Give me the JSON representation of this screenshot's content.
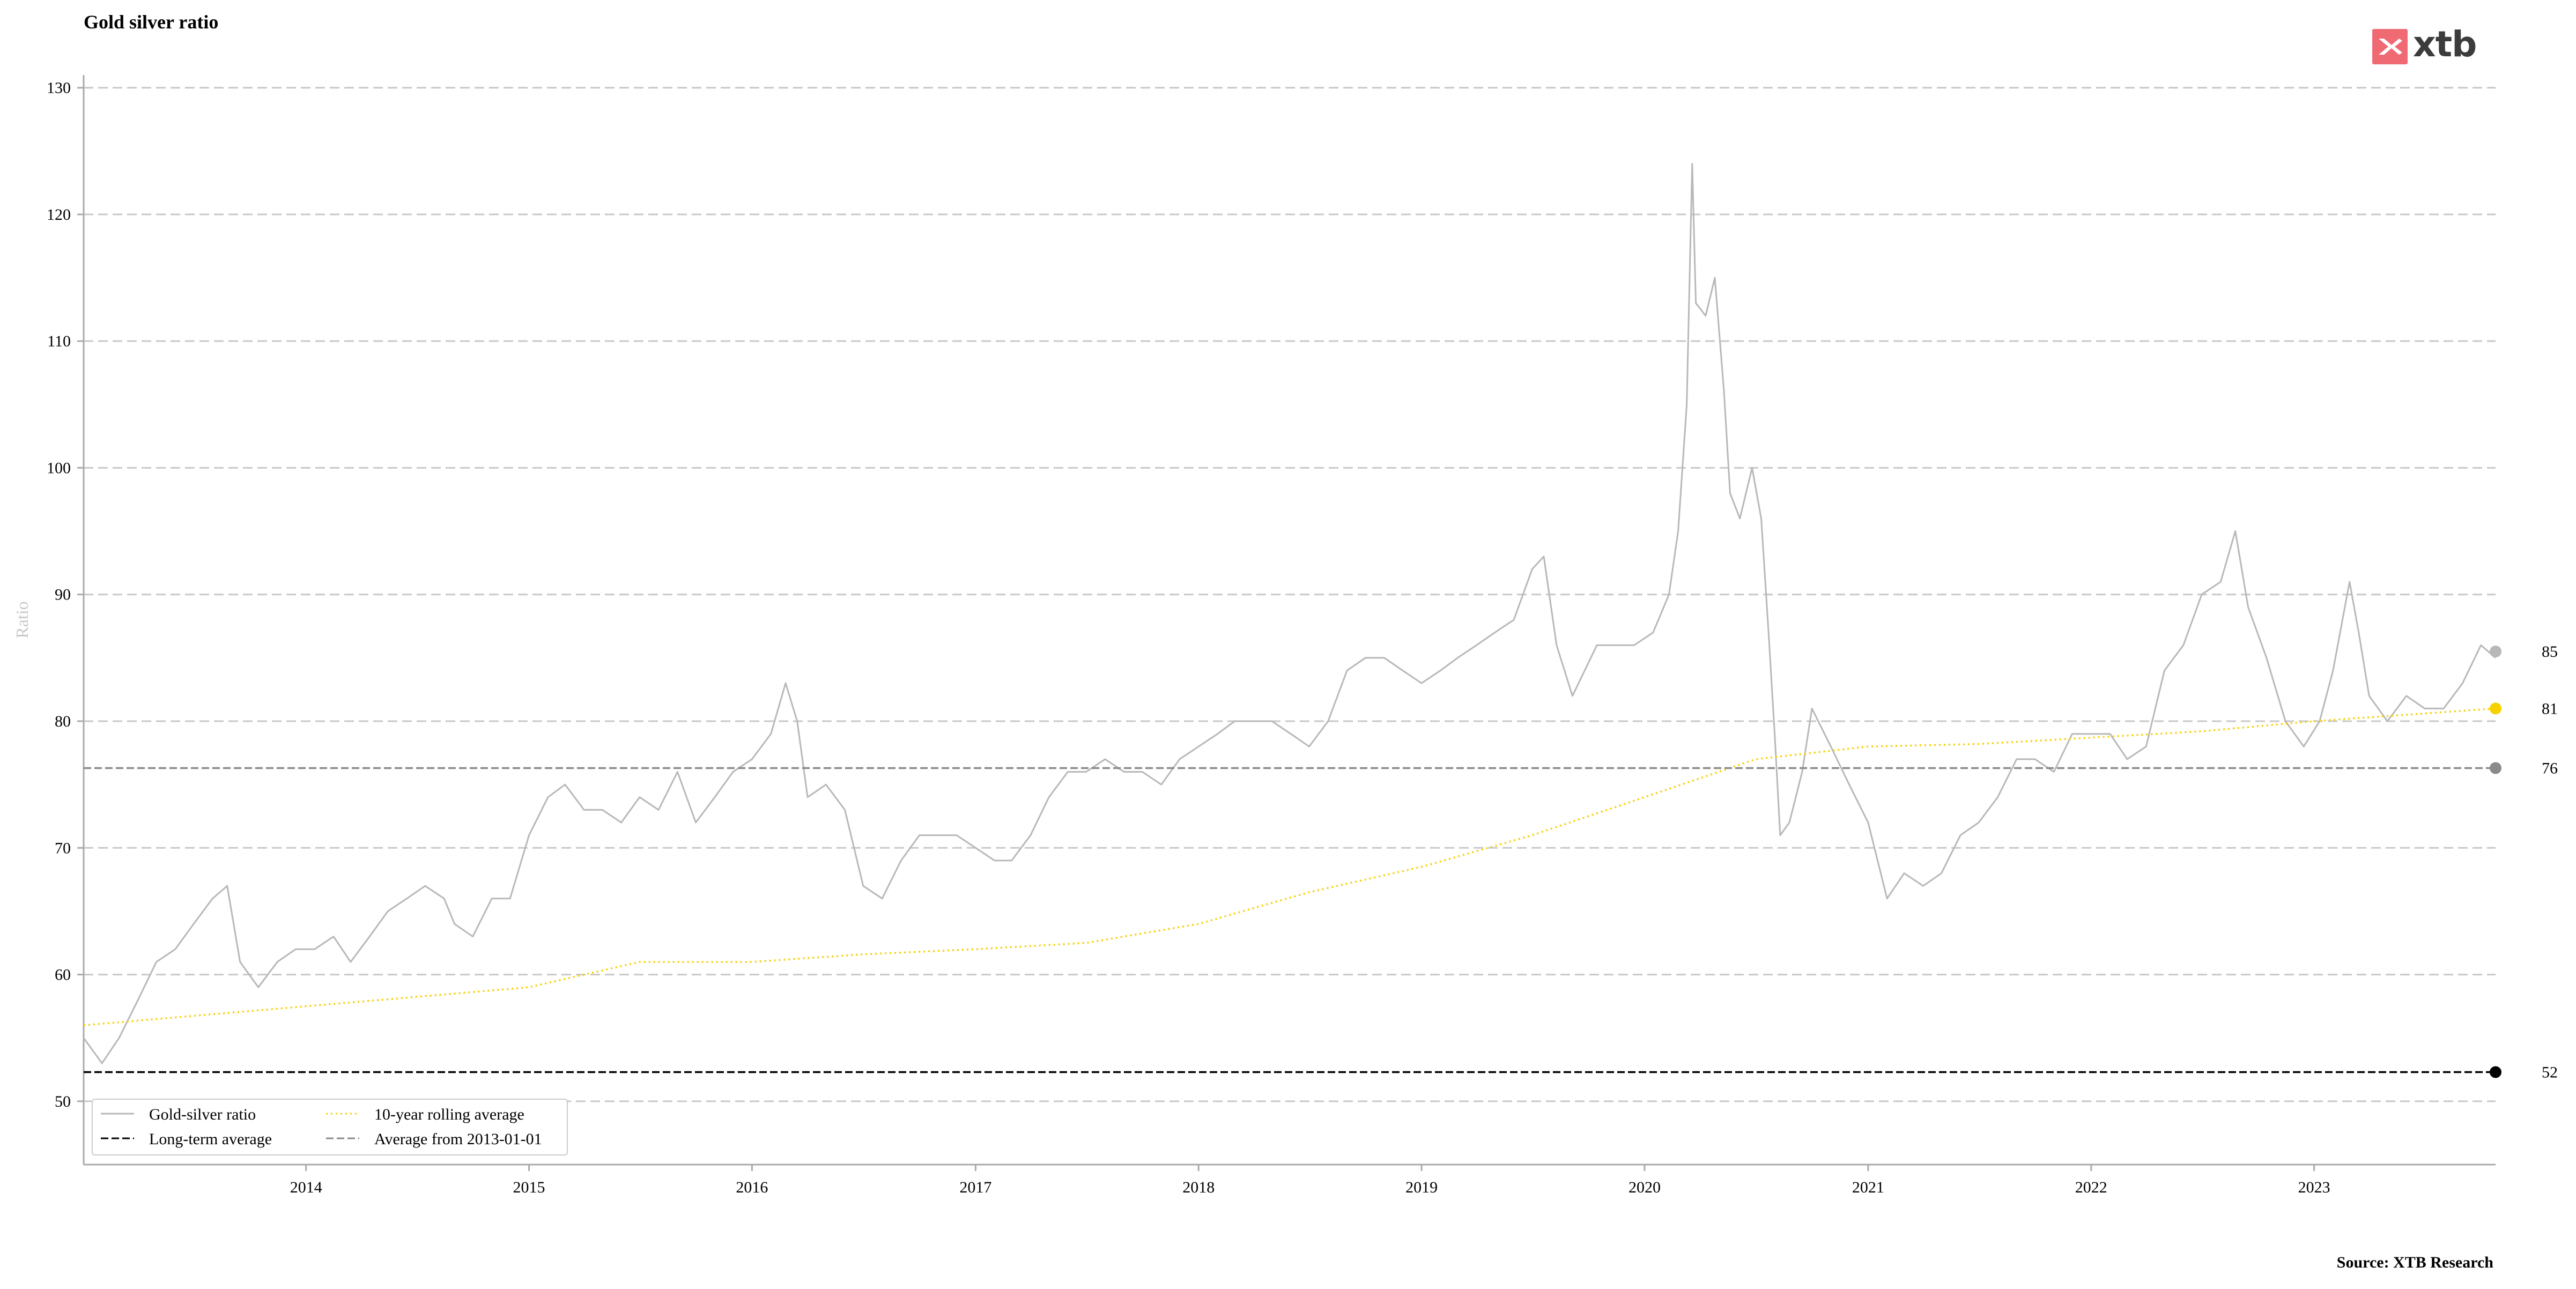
{
  "title": "Gold silver ratio",
  "source": "Source: XTB Research",
  "logo": {
    "text": "xtb",
    "icon": "xtb-logo-icon",
    "color": "#f06a73"
  },
  "chart_data": {
    "type": "line",
    "title": "Gold silver ratio",
    "ylabel": "Ratio",
    "xlabel": "",
    "xlim": [
      "2013-01-02",
      "2023-10-25"
    ],
    "ylim": [
      45,
      131
    ],
    "grid": "horizontal dashed",
    "legend_position": "bottom-left",
    "x_ticks": [
      "2014",
      "2015",
      "2016",
      "2017",
      "2018",
      "2019",
      "2020",
      "2021",
      "2022",
      "2023"
    ],
    "y_ticks": [
      50,
      60,
      70,
      80,
      90,
      100,
      110,
      120,
      130
    ],
    "series": [
      {
        "name": "Gold-silver ratio",
        "color": "#b8b8b8",
        "style": "solid",
        "points": [
          [
            "2013-01-02",
            55
          ],
          [
            "2013-02-01",
            53
          ],
          [
            "2013-03-01",
            55
          ],
          [
            "2013-04-01",
            58
          ],
          [
            "2013-05-01",
            61
          ],
          [
            "2013-06-01",
            62
          ],
          [
            "2013-07-01",
            64
          ],
          [
            "2013-08-01",
            66
          ],
          [
            "2013-08-25",
            67
          ],
          [
            "2013-09-15",
            61
          ],
          [
            "2013-10-15",
            59
          ],
          [
            "2013-11-15",
            61
          ],
          [
            "2013-12-15",
            62
          ],
          [
            "2014-01-15",
            62
          ],
          [
            "2014-02-15",
            63
          ],
          [
            "2014-03-15",
            61
          ],
          [
            "2014-04-15",
            63
          ],
          [
            "2014-05-15",
            65
          ],
          [
            "2014-06-15",
            66
          ],
          [
            "2014-07-15",
            67
          ],
          [
            "2014-08-15",
            66
          ],
          [
            "2014-09-01",
            64
          ],
          [
            "2014-10-01",
            63
          ],
          [
            "2014-11-01",
            66
          ],
          [
            "2014-12-01",
            66
          ],
          [
            "2015-01-01",
            71
          ],
          [
            "2015-02-01",
            74
          ],
          [
            "2015-03-01",
            75
          ],
          [
            "2015-04-01",
            73
          ],
          [
            "2015-05-01",
            73
          ],
          [
            "2015-06-01",
            72
          ],
          [
            "2015-07-01",
            74
          ],
          [
            "2015-08-01",
            73
          ],
          [
            "2015-09-01",
            76
          ],
          [
            "2015-10-01",
            72
          ],
          [
            "2015-11-01",
            74
          ],
          [
            "2015-12-01",
            76
          ],
          [
            "2016-01-01",
            77
          ],
          [
            "2016-02-01",
            79
          ],
          [
            "2016-02-25",
            83
          ],
          [
            "2016-03-15",
            80
          ],
          [
            "2016-04-01",
            74
          ],
          [
            "2016-05-01",
            75
          ],
          [
            "2016-06-01",
            73
          ],
          [
            "2016-07-01",
            67
          ],
          [
            "2016-08-01",
            66
          ],
          [
            "2016-09-01",
            69
          ],
          [
            "2016-10-01",
            71
          ],
          [
            "2016-11-01",
            71
          ],
          [
            "2016-12-01",
            71
          ],
          [
            "2017-01-01",
            70
          ],
          [
            "2017-02-01",
            69
          ],
          [
            "2017-03-01",
            69
          ],
          [
            "2017-04-01",
            71
          ],
          [
            "2017-05-01",
            74
          ],
          [
            "2017-06-01",
            76
          ],
          [
            "2017-07-01",
            76
          ],
          [
            "2017-08-01",
            77
          ],
          [
            "2017-09-01",
            76
          ],
          [
            "2017-10-01",
            76
          ],
          [
            "2017-11-01",
            75
          ],
          [
            "2017-12-01",
            77
          ],
          [
            "2018-01-01",
            78
          ],
          [
            "2018-02-01",
            79
          ],
          [
            "2018-03-01",
            80
          ],
          [
            "2018-04-01",
            80
          ],
          [
            "2018-05-01",
            80
          ],
          [
            "2018-06-01",
            79
          ],
          [
            "2018-07-01",
            78
          ],
          [
            "2018-08-01",
            80
          ],
          [
            "2018-09-01",
            84
          ],
          [
            "2018-10-01",
            85
          ],
          [
            "2018-11-01",
            85
          ],
          [
            "2018-12-01",
            84
          ],
          [
            "2019-01-01",
            83
          ],
          [
            "2019-02-01",
            84
          ],
          [
            "2019-03-01",
            85
          ],
          [
            "2019-04-01",
            86
          ],
          [
            "2019-05-01",
            87
          ],
          [
            "2019-06-01",
            88
          ],
          [
            "2019-07-01",
            92
          ],
          [
            "2019-07-20",
            93
          ],
          [
            "2019-08-10",
            86
          ],
          [
            "2019-09-05",
            82
          ],
          [
            "2019-09-25",
            84
          ],
          [
            "2019-10-15",
            86
          ],
          [
            "2019-11-15",
            86
          ],
          [
            "2019-12-15",
            86
          ],
          [
            "2020-01-15",
            87
          ],
          [
            "2020-02-10",
            90
          ],
          [
            "2020-02-25",
            95
          ],
          [
            "2020-03-10",
            105
          ],
          [
            "2020-03-19",
            124
          ],
          [
            "2020-03-25",
            113
          ],
          [
            "2020-04-10",
            112
          ],
          [
            "2020-04-25",
            115
          ],
          [
            "2020-05-10",
            106
          ],
          [
            "2020-05-20",
            98
          ],
          [
            "2020-06-05",
            96
          ],
          [
            "2020-06-25",
            100
          ],
          [
            "2020-07-10",
            96
          ],
          [
            "2020-07-22",
            87
          ],
          [
            "2020-08-01",
            79
          ],
          [
            "2020-08-10",
            71
          ],
          [
            "2020-08-25",
            72
          ],
          [
            "2020-09-15",
            76
          ],
          [
            "2020-10-01",
            81
          ],
          [
            "2020-11-01",
            78
          ],
          [
            "2020-12-01",
            75
          ],
          [
            "2021-01-01",
            72
          ],
          [
            "2021-02-01",
            66
          ],
          [
            "2021-03-01",
            68
          ],
          [
            "2021-04-01",
            67
          ],
          [
            "2021-05-01",
            68
          ],
          [
            "2021-06-01",
            71
          ],
          [
            "2021-07-01",
            72
          ],
          [
            "2021-08-01",
            74
          ],
          [
            "2021-09-01",
            77
          ],
          [
            "2021-10-01",
            77
          ],
          [
            "2021-11-01",
            76
          ],
          [
            "2021-12-01",
            79
          ],
          [
            "2022-01-01",
            79
          ],
          [
            "2022-02-01",
            79
          ],
          [
            "2022-03-01",
            77
          ],
          [
            "2022-04-01",
            78
          ],
          [
            "2022-05-01",
            84
          ],
          [
            "2022-06-01",
            86
          ],
          [
            "2022-07-01",
            90
          ],
          [
            "2022-08-01",
            91
          ],
          [
            "2022-08-25",
            95
          ],
          [
            "2022-09-15",
            89
          ],
          [
            "2022-10-15",
            85
          ],
          [
            "2022-11-15",
            80
          ],
          [
            "2022-12-15",
            78
          ],
          [
            "2023-01-10",
            80
          ],
          [
            "2023-02-01",
            84
          ],
          [
            "2023-02-28",
            91
          ],
          [
            "2023-03-15",
            87
          ],
          [
            "2023-04-01",
            82
          ],
          [
            "2023-05-01",
            80
          ],
          [
            "2023-06-01",
            82
          ],
          [
            "2023-07-01",
            81
          ],
          [
            "2023-08-01",
            81
          ],
          [
            "2023-09-01",
            83
          ],
          [
            "2023-10-01",
            86
          ],
          [
            "2023-10-25",
            85
          ]
        ]
      },
      {
        "name": "10-year rolling average",
        "color": "#f7d000",
        "style": "dotted",
        "points": [
          [
            "2013-01-02",
            56
          ],
          [
            "2014-01-01",
            57.5
          ],
          [
            "2015-01-01",
            59.0
          ],
          [
            "2015-07-01",
            61.0
          ],
          [
            "2016-01-01",
            61.0
          ],
          [
            "2016-07-01",
            61.6
          ],
          [
            "2017-01-01",
            62.0
          ],
          [
            "2017-07-01",
            62.5
          ],
          [
            "2018-01-01",
            64.0
          ],
          [
            "2018-07-01",
            66.5
          ],
          [
            "2019-01-01",
            68.5
          ],
          [
            "2019-07-01",
            71.0
          ],
          [
            "2020-01-01",
            74.0
          ],
          [
            "2020-07-01",
            77.0
          ],
          [
            "2021-01-01",
            78.0
          ],
          [
            "2021-07-01",
            78.2
          ],
          [
            "2022-01-01",
            78.7
          ],
          [
            "2022-07-01",
            79.2
          ],
          [
            "2023-01-01",
            80.0
          ],
          [
            "2023-10-25",
            81.0
          ]
        ]
      },
      {
        "name": "Long-term average",
        "color": "#000000",
        "style": "dashed",
        "value": 52.3
      },
      {
        "name": "Average from 2013-01-01",
        "color": "#8a8a8a",
        "style": "dashed",
        "value": 76.3
      }
    ],
    "end_labels": [
      {
        "series": "Gold-silver ratio",
        "value": 85.5,
        "label": "85",
        "color": "#b8b8b8"
      },
      {
        "series": "10-year rolling average",
        "value": 81.0,
        "label": "81",
        "color": "#f7d000"
      },
      {
        "series": "Average from 2013-01-01",
        "value": 76.3,
        "label": "76",
        "color": "#8a8a8a"
      },
      {
        "series": "Long-term average",
        "value": 52.3,
        "label": "52",
        "color": "#000000"
      }
    ]
  }
}
